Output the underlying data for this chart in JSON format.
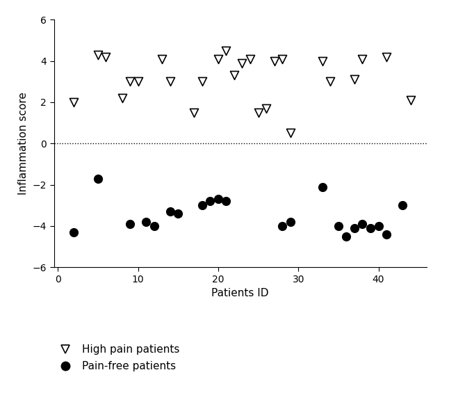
{
  "high_pain_x": [
    2,
    5,
    6,
    8,
    9,
    10,
    13,
    14,
    17,
    18,
    20,
    21,
    22,
    23,
    24,
    25,
    26,
    27,
    28,
    29,
    33,
    34,
    37,
    38,
    41,
    44
  ],
  "high_pain_y": [
    2.0,
    4.3,
    4.2,
    2.2,
    3.0,
    3.0,
    4.1,
    3.0,
    1.5,
    3.0,
    4.1,
    4.5,
    3.3,
    3.9,
    4.1,
    1.5,
    1.7,
    4.0,
    4.1,
    0.5,
    4.0,
    3.0,
    3.1,
    4.1,
    4.2,
    2.1
  ],
  "pain_free_x": [
    2,
    5,
    9,
    11,
    12,
    14,
    15,
    18,
    19,
    20,
    21,
    28,
    29,
    33,
    35,
    36,
    37,
    38,
    39,
    40,
    41,
    43
  ],
  "pain_free_y": [
    -4.3,
    -1.7,
    -3.9,
    -3.8,
    -4.0,
    -3.3,
    -3.4,
    -3.0,
    -2.8,
    -2.7,
    -2.8,
    -4.0,
    -3.8,
    -2.1,
    -4.0,
    -4.5,
    -4.1,
    -3.9,
    -4.1,
    -4.0,
    -4.4,
    -3.0
  ],
  "xlabel": "Patients ID",
  "ylabel": "Inflammation score",
  "xlim": [
    -0.5,
    46
  ],
  "ylim": [
    -6,
    6
  ],
  "yticks": [
    -6,
    -4,
    -2,
    0,
    2,
    4,
    6
  ],
  "xticks": [
    0,
    10,
    20,
    30,
    40
  ],
  "legend_hp": "High pain patients",
  "legend_pf": "Pain-free patients",
  "dotted_line_y": 0,
  "triangle_size": 75,
  "circle_size": 75,
  "bg_color": "#ffffff",
  "edge_color": "#000000",
  "triangle_lw": 1.2,
  "circle_lw": 0.8
}
